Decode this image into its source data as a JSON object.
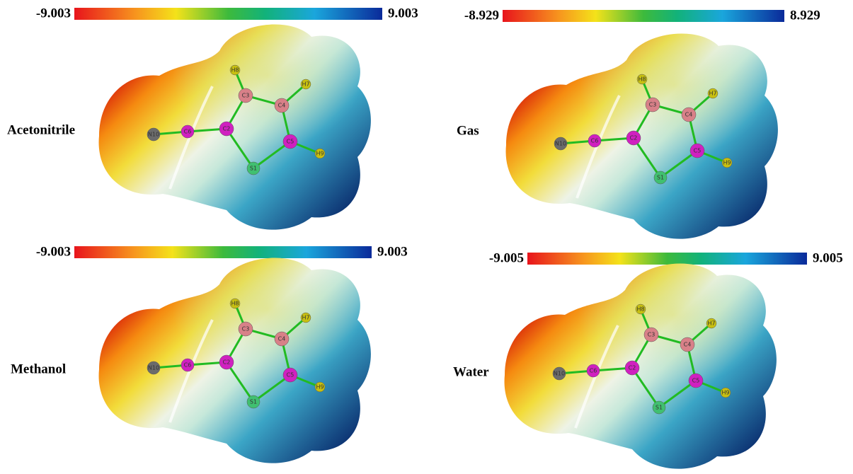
{
  "panels": [
    {
      "label": "Acetonitrile",
      "min": "-9.003",
      "max": "9.003",
      "atoms": [
        "N10",
        "C6",
        "C2",
        "C3",
        "C4",
        "C5",
        "S1",
        "H8",
        "H7",
        "H9"
      ]
    },
    {
      "label": "Gas",
      "min": "-8.929",
      "max": "8.929",
      "atoms": [
        "N10",
        "C6",
        "C2",
        "C3",
        "C4",
        "C5",
        "S1",
        "H8",
        "H7",
        "H9"
      ]
    },
    {
      "label": "Methanol",
      "min": "-9.003",
      "max": "9.003",
      "atoms": [
        "N10",
        "C6",
        "C2",
        "C3",
        "C4",
        "C5",
        "S1",
        "H8",
        "H7",
        "H9"
      ]
    },
    {
      "label": "Water",
      "min": "-9.005",
      "max": "9.005",
      "atoms": [
        "N10",
        "C6",
        "C2",
        "C3",
        "C4",
        "C5",
        "S1",
        "H8",
        "H7",
        "H9"
      ]
    }
  ]
}
